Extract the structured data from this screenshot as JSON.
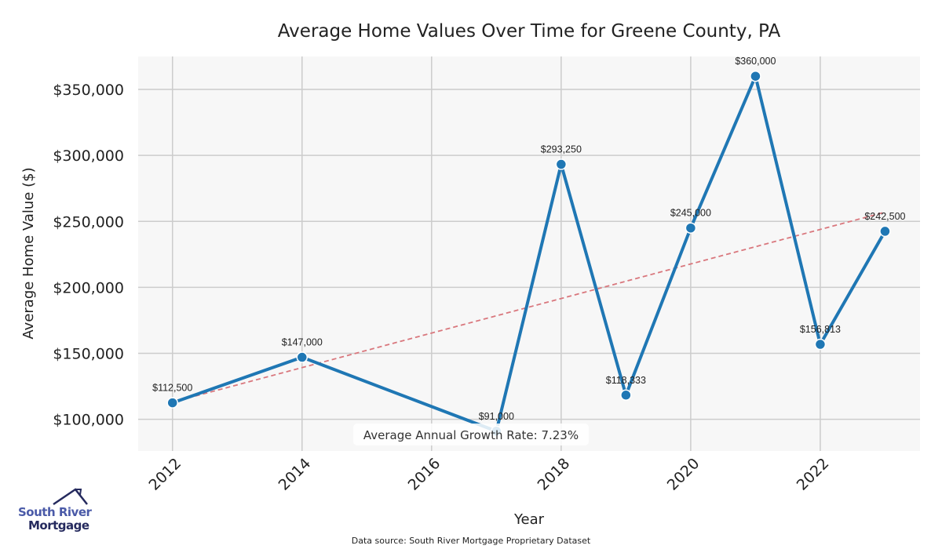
{
  "chart_data": {
    "type": "line",
    "title": "Average Home Values Over Time for Greene County, PA",
    "xlabel": "Year",
    "ylabel": "Average Home Value ($)",
    "x": [
      2012,
      2014,
      2017,
      2018,
      2019,
      2020,
      2021,
      2022,
      2023
    ],
    "series": [
      {
        "values": [
          112500,
          147000,
          91000,
          293250,
          118333,
          245000,
          360000,
          156813,
          242500
        ],
        "labels": [
          "$112,500",
          "$147,000",
          "$91,000",
          "$293,250",
          "$118,333",
          "$245,000",
          "$360,000",
          "$156,813",
          "$242,500"
        ],
        "color": "#1f77b4"
      }
    ],
    "trendline": {
      "x": [
        2012,
        2023
      ],
      "y": [
        113000,
        257000
      ],
      "color": "#d9777d",
      "style": "dashed"
    },
    "xticks": [
      2012,
      2014,
      2016,
      2018,
      2020,
      2022
    ],
    "xtick_labels": [
      "2012",
      "2014",
      "2016",
      "2018",
      "2020",
      "2022"
    ],
    "yticks": [
      100000,
      150000,
      200000,
      250000,
      300000,
      350000
    ],
    "ytick_labels": [
      "$100,000",
      "$150,000",
      "$200,000",
      "$250,000",
      "$300,000",
      "$350,000"
    ],
    "xlim": [
      2011.47,
      2023.54
    ],
    "ylim": [
      76000,
      375000
    ],
    "grid": true,
    "background": "#f7f7f7",
    "annotation": "Average Annual Growth Rate: 7.23%"
  },
  "footer": {
    "source": "Data source: South River Mortgage Proprietary Dataset"
  },
  "logo": {
    "line1": "South River",
    "line2": "Mortgage"
  }
}
